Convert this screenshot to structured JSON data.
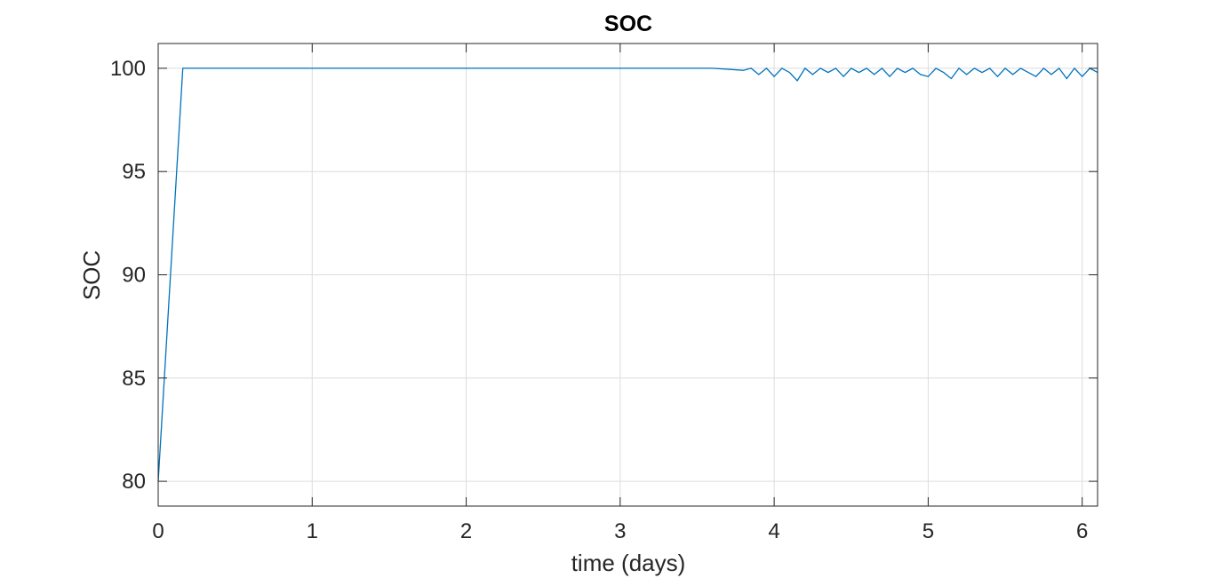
{
  "chart_data": {
    "type": "line",
    "title": "SOC",
    "xlabel": "time (days)",
    "ylabel": "SOC",
    "xlim": [
      0,
      6.1
    ],
    "ylim": [
      78.8,
      101.2
    ],
    "xticks": [
      0,
      1,
      2,
      3,
      4,
      5,
      6
    ],
    "yticks": [
      80,
      85,
      90,
      95,
      100
    ],
    "grid": true,
    "legend": "none",
    "series": [
      {
        "color": "#0072BD",
        "x": [
          0,
          0.16,
          3.6,
          3.8,
          3.85,
          3.9,
          3.95,
          4.0,
          4.05,
          4.1,
          4.15,
          4.2,
          4.25,
          4.3,
          4.35,
          4.4,
          4.45,
          4.5,
          4.55,
          4.6,
          4.65,
          4.7,
          4.75,
          4.8,
          4.85,
          4.9,
          4.95,
          5.0,
          5.05,
          5.1,
          5.15,
          5.2,
          5.25,
          5.3,
          5.35,
          5.4,
          5.45,
          5.5,
          5.55,
          5.6,
          5.65,
          5.7,
          5.75,
          5.8,
          5.85,
          5.9,
          5.95,
          6.0,
          6.05,
          6.1
        ],
        "y": [
          80,
          100,
          100,
          99.9,
          100,
          99.7,
          100,
          99.6,
          100,
          99.8,
          99.4,
          100,
          99.7,
          100,
          99.8,
          100,
          99.6,
          100,
          99.8,
          100,
          99.7,
          100,
          99.6,
          100,
          99.8,
          100,
          99.7,
          99.6,
          100,
          99.8,
          99.5,
          100,
          99.7,
          100,
          99.8,
          100,
          99.6,
          100,
          99.7,
          100,
          99.8,
          99.6,
          100,
          99.7,
          100,
          99.5,
          100,
          99.6,
          100,
          99.8
        ]
      }
    ]
  }
}
